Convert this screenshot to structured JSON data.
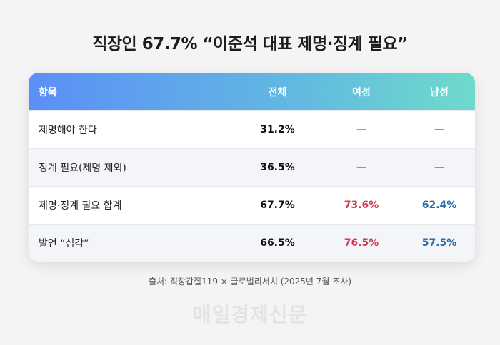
{
  "title": "직장인 67.7% “이준석 대표 제명·징계 필요”",
  "source": "출처: 직장갑질119 × 글로벌리서치 (2025년 7월 조사)",
  "watermark": "매일경제신문",
  "colors": {
    "header_gradient_start": "#5b8ff8",
    "header_gradient_end": "#6fdacb",
    "female_accent": "#d63b4e",
    "male_accent": "#2f6bb0"
  },
  "chart_data": {
    "type": "table",
    "columns": [
      "항목",
      "전체",
      "여성",
      "남성"
    ],
    "rows": [
      {
        "label": "제명해야 한다",
        "total": "31.2%",
        "female": "—",
        "male": "—"
      },
      {
        "label": "징계 필요(제명 제외)",
        "total": "36.5%",
        "female": "—",
        "male": "—"
      },
      {
        "label": "제명·징계 필요 합계",
        "total": "67.7%",
        "female": "73.6%",
        "male": "62.4%"
      },
      {
        "label": "발언 “심각”",
        "total": "66.5%",
        "female": "76.5%",
        "male": "57.5%"
      }
    ]
  }
}
